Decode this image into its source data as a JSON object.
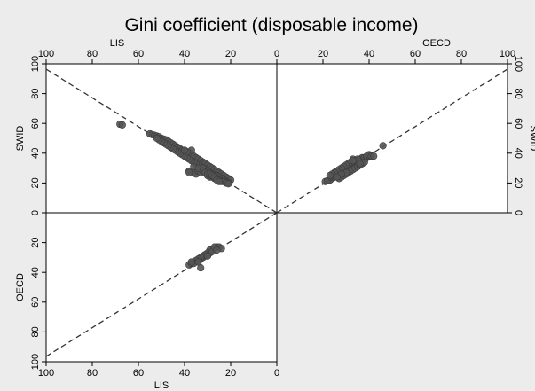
{
  "chart_data": {
    "type": "scatter",
    "title": "Gini coefficient (disposable income)",
    "layout": "four-quadrant scatter comparing Gini estimates; top-left: LIS (x, reversed) vs SWID (y); top-right: OECD (x) vs SWID (y); bottom-left: LIS (x, reversed) vs OECD (y, reversed downward); dashed 45-degree reference lines through origin",
    "axes": {
      "top_left_x_label": "LIS",
      "top_right_x_label": "OECD",
      "left_y_label": "SWID",
      "right_y_label": "SWID",
      "bottom_y_label": "OECD",
      "bottom_x_label": "LIS",
      "range": [
        0,
        100
      ],
      "ticks": [
        "0",
        "20",
        "40",
        "60",
        "80",
        "100"
      ]
    },
    "grid": false,
    "reference_lines": "dashed 45-degree lines",
    "marker_color": "#555555",
    "series": [
      {
        "panel": "LIS vs SWID",
        "points": [
          [
            68,
            59.5
          ],
          [
            67,
            59
          ],
          [
            55,
            53
          ],
          [
            54,
            52.5
          ],
          [
            53,
            52
          ],
          [
            52,
            51.5
          ],
          [
            51,
            51
          ],
          [
            50,
            50
          ],
          [
            49,
            49.5
          ],
          [
            48,
            49
          ],
          [
            47,
            48
          ],
          [
            46,
            47
          ],
          [
            45,
            46
          ],
          [
            44,
            45
          ],
          [
            43,
            44
          ],
          [
            42,
            43
          ],
          [
            41,
            42
          ],
          [
            40,
            41
          ],
          [
            39,
            40
          ],
          [
            38,
            40.5
          ],
          [
            37,
            39
          ],
          [
            36,
            38
          ],
          [
            35,
            37
          ],
          [
            34,
            36
          ],
          [
            33,
            35
          ],
          [
            32,
            34
          ],
          [
            31,
            33
          ],
          [
            30,
            32
          ],
          [
            29,
            31
          ],
          [
            28,
            30
          ],
          [
            27,
            29
          ],
          [
            26,
            28
          ],
          [
            25,
            27
          ],
          [
            24,
            26
          ],
          [
            23,
            25
          ],
          [
            22,
            24
          ],
          [
            21,
            23
          ],
          [
            20,
            22
          ],
          [
            21,
            20
          ],
          [
            22,
            21
          ],
          [
            23,
            22
          ],
          [
            24,
            23
          ],
          [
            25,
            24
          ],
          [
            26,
            25
          ],
          [
            27,
            25.5
          ],
          [
            28,
            26
          ],
          [
            29,
            27
          ],
          [
            30,
            28
          ],
          [
            31,
            29
          ],
          [
            32,
            30
          ],
          [
            33,
            31
          ],
          [
            34,
            32
          ],
          [
            35,
            33
          ],
          [
            36,
            34
          ],
          [
            37,
            35
          ],
          [
            38,
            36
          ],
          [
            39,
            37
          ],
          [
            40,
            38
          ],
          [
            41,
            39
          ],
          [
            42,
            40
          ],
          [
            43,
            41
          ],
          [
            44,
            42
          ],
          [
            45,
            43
          ],
          [
            46,
            44
          ],
          [
            47,
            45
          ],
          [
            48,
            46
          ],
          [
            49,
            47
          ],
          [
            50,
            48
          ],
          [
            51,
            49
          ],
          [
            52,
            50
          ],
          [
            38,
            28
          ],
          [
            36,
            27
          ],
          [
            35,
            26
          ],
          [
            34,
            28
          ],
          [
            33,
            27
          ],
          [
            32,
            30
          ],
          [
            37,
            42
          ],
          [
            39,
            41
          ],
          [
            40,
            42
          ],
          [
            38,
            27
          ],
          [
            30,
            25
          ],
          [
            29,
            24
          ],
          [
            28,
            24
          ],
          [
            27,
            23
          ],
          [
            26,
            23
          ],
          [
            25,
            22
          ],
          [
            24,
            21
          ],
          [
            23,
            21
          ],
          [
            22,
            20
          ],
          [
            21,
            19.5
          ],
          [
            36,
            31
          ],
          [
            34,
            30
          ],
          [
            32,
            28
          ],
          [
            31,
            27
          ],
          [
            30,
            26
          ],
          [
            29,
            26
          ],
          [
            28,
            25
          ],
          [
            27,
            24
          ],
          [
            26,
            22
          ],
          [
            25,
            21
          ]
        ]
      },
      {
        "panel": "OECD vs SWID",
        "points": [
          [
            21,
            21
          ],
          [
            22,
            21.5
          ],
          [
            23,
            22
          ],
          [
            24,
            23
          ],
          [
            24,
            24
          ],
          [
            25,
            24
          ],
          [
            25,
            25
          ],
          [
            26,
            25
          ],
          [
            26,
            26
          ],
          [
            27,
            26
          ],
          [
            27,
            27
          ],
          [
            28,
            27
          ],
          [
            28,
            28
          ],
          [
            29,
            28
          ],
          [
            29,
            29
          ],
          [
            30,
            29
          ],
          [
            30,
            30
          ],
          [
            31,
            30
          ],
          [
            31,
            31
          ],
          [
            32,
            31
          ],
          [
            32,
            32
          ],
          [
            33,
            32
          ],
          [
            33,
            33
          ],
          [
            34,
            33
          ],
          [
            34,
            34
          ],
          [
            35,
            34
          ],
          [
            35,
            35
          ],
          [
            36,
            35
          ],
          [
            36,
            36
          ],
          [
            37,
            36
          ],
          [
            37,
            37
          ],
          [
            38,
            36
          ],
          [
            38,
            37
          ],
          [
            39,
            37
          ],
          [
            39,
            38
          ],
          [
            40,
            38
          ],
          [
            40,
            39
          ],
          [
            41,
            38
          ],
          [
            42,
            38
          ],
          [
            33,
            36
          ],
          [
            32,
            34
          ],
          [
            31,
            33
          ],
          [
            30,
            32
          ],
          [
            29,
            31
          ],
          [
            28,
            30
          ],
          [
            27,
            29
          ],
          [
            26,
            28
          ],
          [
            25,
            27
          ],
          [
            24,
            26
          ],
          [
            23,
            25
          ],
          [
            27,
            23
          ],
          [
            28,
            24
          ],
          [
            29,
            25
          ],
          [
            30,
            26
          ],
          [
            31,
            27
          ],
          [
            32,
            28
          ],
          [
            33,
            29
          ],
          [
            34,
            30
          ],
          [
            35,
            31
          ],
          [
            36,
            32
          ],
          [
            37,
            33
          ],
          [
            38,
            34
          ],
          [
            35,
            36
          ],
          [
            34,
            35
          ],
          [
            46,
            45
          ],
          [
            36,
            33
          ],
          [
            33,
            35
          ],
          [
            30,
            27
          ],
          [
            28,
            26
          ],
          [
            26,
            24
          ]
        ]
      },
      {
        "panel": "LIS vs OECD",
        "points": [
          [
            38,
            35
          ],
          [
            37,
            34
          ],
          [
            36,
            33
          ],
          [
            35,
            33
          ],
          [
            34,
            32
          ],
          [
            33,
            31
          ],
          [
            32,
            30
          ],
          [
            31,
            29
          ],
          [
            30,
            28
          ],
          [
            29,
            27
          ],
          [
            28,
            25
          ],
          [
            27,
            24
          ],
          [
            26,
            23
          ],
          [
            25,
            23
          ],
          [
            24,
            24
          ],
          [
            29,
            25
          ],
          [
            30,
            27
          ],
          [
            31,
            28
          ],
          [
            32,
            29
          ],
          [
            33,
            30
          ],
          [
            34,
            31
          ],
          [
            35,
            32
          ],
          [
            36,
            34
          ],
          [
            37,
            33
          ],
          [
            33,
            37
          ],
          [
            34,
            33
          ],
          [
            30,
            29
          ],
          [
            28,
            26
          ],
          [
            27,
            23
          ],
          [
            26,
            25
          ]
        ]
      }
    ]
  }
}
